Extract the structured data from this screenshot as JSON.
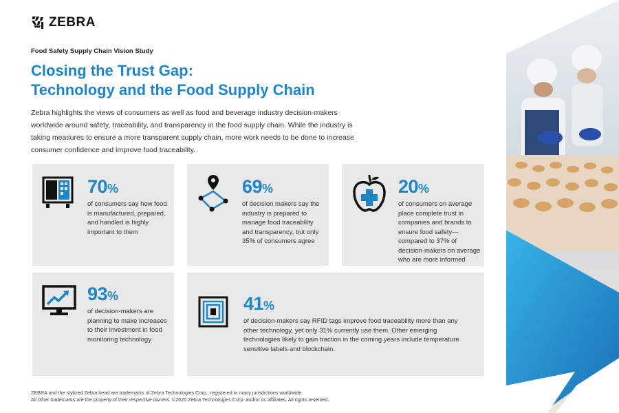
{
  "brand": {
    "name": "ZEBRA"
  },
  "header": {
    "eyebrow": "Food Safety Supply Chain Vision Study",
    "title_line1": "Closing the Trust Gap:",
    "title_line2": "Technology and the Food Supply Chain"
  },
  "intro": "Zebra highlights the views of consumers as well as food and beverage industry decision-makers worldwide around safety, traceability, and transparency in the food supply chain. While the industry is taking measures to ensure a more transparent supply chain, more work needs to be done to increase consumer confidence and improve food traceability.",
  "stats": [
    {
      "value": "70",
      "symbol": "%",
      "icon": "shipping-truck-icon",
      "text": "of consumers say how food is manufactured, prepared, and handled is highly important to them"
    },
    {
      "value": "69",
      "symbol": "%",
      "icon": "route-map-pin-icon",
      "text": "of decision makers say the industry is prepared to manage food traceability and transparency, but only 35% of consumers agree"
    },
    {
      "value": "20",
      "symbol": "%",
      "icon": "apple-health-icon",
      "text": "of consumers on average place complete trust in companies and brands to ensure food safety—compared to 37% of decision-makers on average who are more informed"
    },
    {
      "value": "93",
      "symbol": "%",
      "icon": "monitor-chart-icon",
      "text": "of decision-makers are planning to make increases to their investment in food monitoring technology"
    },
    {
      "value": "41",
      "symbol": "%",
      "icon": "rfid-tag-icon",
      "text": "of decision-makers say RFID tags improve food traceability more than any other technology, yet only 31% currently use them. Other emerging technologies likely to gain traction in the coming years include temperature sensitive labels and blockchain."
    }
  ],
  "footer": {
    "line1": "ZEBRA and the stylized Zebra head are trademarks of Zebra Technologies Corp., registered in many jurisdictions worldwide.",
    "line2": "All other trademarks are the property of their respective owners. ©2020 Zebra Technologies Corp. and/or its affiliates. All rights reserved."
  },
  "colors": {
    "accent": "#1f86c6",
    "card": "#e8e8e8",
    "dark": "#111111"
  }
}
